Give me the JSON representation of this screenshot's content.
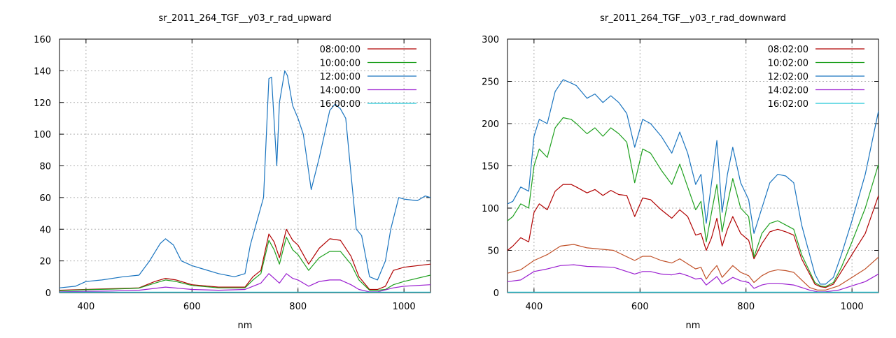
{
  "chart_data": [
    {
      "type": "line",
      "title": "sr_2011_264_TGF__y03_r_rad_upward",
      "xlabel": "nm",
      "ylabel": "",
      "xlim": [
        350,
        1050
      ],
      "ylim": [
        0,
        160
      ],
      "xticks": [
        400,
        600,
        800,
        1000
      ],
      "yticks": [
        0,
        20,
        40,
        60,
        80,
        100,
        120,
        140,
        160
      ],
      "grid": true,
      "legend": "top-right",
      "series": [
        {
          "name": "08:00:00",
          "color": "#b00000",
          "x": [
            350,
            400,
            450,
            500,
            530,
            550,
            570,
            600,
            650,
            700,
            715,
            730,
            745,
            755,
            765,
            778,
            790,
            800,
            820,
            840,
            860,
            880,
            900,
            915,
            935,
            950,
            965,
            980,
            1000,
            1050
          ],
          "y": [
            1.5,
            2,
            2.5,
            3,
            7,
            9,
            8,
            5,
            3.5,
            3.5,
            10,
            14,
            37,
            32,
            22,
            40,
            33,
            30,
            18,
            28,
            34,
            33,
            23,
            10,
            2,
            2,
            4,
            14,
            16,
            18
          ]
        },
        {
          "name": "10:00:00",
          "color": "#1ea01e",
          "x": [
            350,
            400,
            450,
            500,
            530,
            550,
            570,
            600,
            650,
            700,
            715,
            730,
            745,
            755,
            765,
            778,
            790,
            800,
            820,
            840,
            860,
            880,
            900,
            915,
            935,
            950,
            965,
            980,
            1000,
            1050
          ],
          "y": [
            1.2,
            1.8,
            2.2,
            2.8,
            6,
            8,
            7,
            4.5,
            3,
            3,
            8,
            12,
            33,
            27,
            18,
            35,
            27,
            24,
            14,
            22,
            26,
            26,
            18,
            8,
            1.5,
            1.5,
            2,
            5,
            7,
            11
          ]
        },
        {
          "name": "12:00:00",
          "color": "#1a74bf",
          "x": [
            350,
            380,
            400,
            430,
            470,
            500,
            520,
            540,
            550,
            565,
            580,
            600,
            620,
            650,
            680,
            700,
            710,
            720,
            735,
            745,
            750,
            760,
            765,
            775,
            780,
            790,
            800,
            810,
            825,
            840,
            860,
            870,
            880,
            890,
            900,
            910,
            920,
            935,
            950,
            965,
            975,
            990,
            1000,
            1025,
            1040,
            1050
          ],
          "y": [
            3,
            4,
            7,
            8,
            10,
            11,
            20,
            31,
            34,
            30,
            20,
            17,
            15,
            12,
            10,
            12,
            30,
            42,
            60,
            135,
            136,
            80,
            120,
            140,
            137,
            118,
            110,
            100,
            65,
            85,
            115,
            119,
            116,
            110,
            75,
            40,
            36,
            10,
            8,
            20,
            40,
            60,
            59,
            58,
            61,
            60
          ]
        },
        {
          "name": "14:00:00",
          "color": "#9b1fd0",
          "x": [
            350,
            400,
            450,
            500,
            550,
            600,
            650,
            700,
            715,
            730,
            745,
            755,
            765,
            778,
            790,
            800,
            820,
            840,
            860,
            880,
            900,
            915,
            935,
            950,
            980,
            1000,
            1050
          ],
          "y": [
            0.5,
            0.8,
            1,
            1.5,
            3.5,
            2,
            1.5,
            2,
            4,
            6,
            12,
            9,
            6,
            12,
            9,
            8,
            4,
            7,
            8,
            8,
            5,
            2,
            0.5,
            0.5,
            3,
            4,
            5
          ]
        },
        {
          "name": "16:00:00",
          "color": "#22c8d8",
          "x": [
            350,
            1050
          ],
          "y": [
            0.3,
            0.3
          ]
        }
      ]
    },
    {
      "type": "line",
      "title": "sr_2011_264_TGF__y03_r_rad_downward",
      "xlabel": "nm",
      "ylabel": "",
      "xlim": [
        350,
        1050
      ],
      "ylim": [
        0,
        300
      ],
      "xticks": [
        400,
        600,
        800,
        1000
      ],
      "yticks": [
        0,
        50,
        100,
        150,
        200,
        250,
        300
      ],
      "grid": true,
      "legend": "top-right",
      "series": [
        {
          "name": "08:02:00",
          "color": "#b00000",
          "x": [
            350,
            360,
            375,
            390,
            400,
            410,
            425,
            440,
            455,
            470,
            480,
            500,
            515,
            530,
            545,
            560,
            575,
            590,
            605,
            620,
            640,
            660,
            675,
            690,
            705,
            715,
            725,
            735,
            745,
            755,
            765,
            775,
            790,
            805,
            815,
            830,
            845,
            860,
            875,
            890,
            905,
            920,
            930,
            940,
            950,
            965,
            980,
            1000,
            1025,
            1050
          ],
          "y": [
            50,
            55,
            65,
            60,
            95,
            105,
            98,
            120,
            128,
            128,
            125,
            118,
            122,
            115,
            121,
            116,
            115,
            90,
            112,
            110,
            98,
            88,
            98,
            90,
            68,
            70,
            50,
            65,
            88,
            55,
            75,
            90,
            70,
            62,
            40,
            58,
            72,
            75,
            72,
            68,
            40,
            22,
            10,
            7,
            6,
            10,
            25,
            45,
            70,
            115
          ]
        },
        {
          "name": "10:02:00",
          "color": "#1ea01e",
          "x": [
            350,
            360,
            375,
            390,
            400,
            410,
            425,
            440,
            455,
            470,
            480,
            500,
            515,
            530,
            545,
            560,
            575,
            590,
            605,
            620,
            640,
            660,
            675,
            690,
            705,
            715,
            725,
            735,
            745,
            755,
            765,
            775,
            790,
            805,
            815,
            830,
            845,
            860,
            875,
            890,
            905,
            920,
            930,
            940,
            950,
            965,
            980,
            1000,
            1025,
            1050
          ],
          "y": [
            85,
            90,
            105,
            100,
            150,
            170,
            160,
            195,
            207,
            205,
            200,
            188,
            195,
            185,
            195,
            188,
            178,
            130,
            170,
            165,
            145,
            128,
            152,
            125,
            98,
            108,
            60,
            95,
            128,
            72,
            105,
            135,
            100,
            90,
            42,
            70,
            82,
            85,
            80,
            75,
            45,
            25,
            12,
            8,
            7,
            12,
            30,
            60,
            100,
            152
          ]
        },
        {
          "name": "12:02:00",
          "color": "#1a74bf",
          "x": [
            350,
            360,
            375,
            390,
            400,
            410,
            425,
            440,
            455,
            470,
            480,
            500,
            515,
            530,
            545,
            560,
            575,
            590,
            605,
            620,
            640,
            660,
            675,
            690,
            705,
            715,
            725,
            735,
            745,
            755,
            765,
            775,
            790,
            805,
            815,
            830,
            845,
            860,
            875,
            890,
            905,
            920,
            930,
            940,
            950,
            965,
            980,
            1000,
            1025,
            1050
          ],
          "y": [
            105,
            108,
            125,
            120,
            185,
            205,
            200,
            238,
            252,
            248,
            245,
            230,
            235,
            225,
            233,
            225,
            212,
            172,
            205,
            200,
            185,
            165,
            190,
            165,
            128,
            140,
            82,
            130,
            180,
            95,
            140,
            172,
            130,
            110,
            70,
            100,
            130,
            140,
            138,
            130,
            80,
            45,
            22,
            10,
            10,
            18,
            45,
            85,
            140,
            215
          ]
        },
        {
          "name": "14:02:00",
          "color": "#9b1fd0",
          "x": [
            350,
            375,
            400,
            425,
            450,
            475,
            500,
            550,
            590,
            605,
            620,
            640,
            660,
            675,
            690,
            705,
            715,
            725,
            735,
            745,
            755,
            765,
            775,
            790,
            805,
            815,
            830,
            845,
            860,
            875,
            890,
            905,
            920,
            935,
            950,
            975,
            1000,
            1025,
            1050
          ],
          "y": [
            13,
            15,
            25,
            28,
            32,
            33,
            31,
            30,
            22,
            25,
            25,
            22,
            21,
            23,
            20,
            16,
            17,
            9,
            14,
            19,
            10,
            14,
            18,
            14,
            12,
            5,
            9,
            11,
            11,
            10,
            9,
            6,
            3,
            1,
            1,
            3,
            8,
            13,
            22
          ]
        },
        {
          "name": "16:02:00",
          "color": "#22c8d8",
          "x": [
            350,
            1050
          ],
          "y": [
            0.5,
            0.5
          ]
        }
      ],
      "extra_series": [
        {
          "color": "#c05028",
          "x": [
            350,
            375,
            400,
            425,
            450,
            475,
            500,
            550,
            590,
            605,
            620,
            640,
            660,
            675,
            690,
            705,
            715,
            725,
            735,
            745,
            755,
            765,
            775,
            790,
            805,
            815,
            830,
            845,
            860,
            875,
            890,
            905,
            920,
            935,
            950,
            975,
            1000,
            1025,
            1050
          ],
          "y": [
            23,
            27,
            38,
            45,
            55,
            57,
            53,
            50,
            38,
            43,
            43,
            38,
            35,
            40,
            34,
            28,
            30,
            16,
            25,
            32,
            18,
            25,
            32,
            24,
            20,
            12,
            20,
            25,
            27,
            26,
            24,
            15,
            6,
            3,
            3,
            8,
            18,
            28,
            42
          ]
        }
      ]
    }
  ]
}
